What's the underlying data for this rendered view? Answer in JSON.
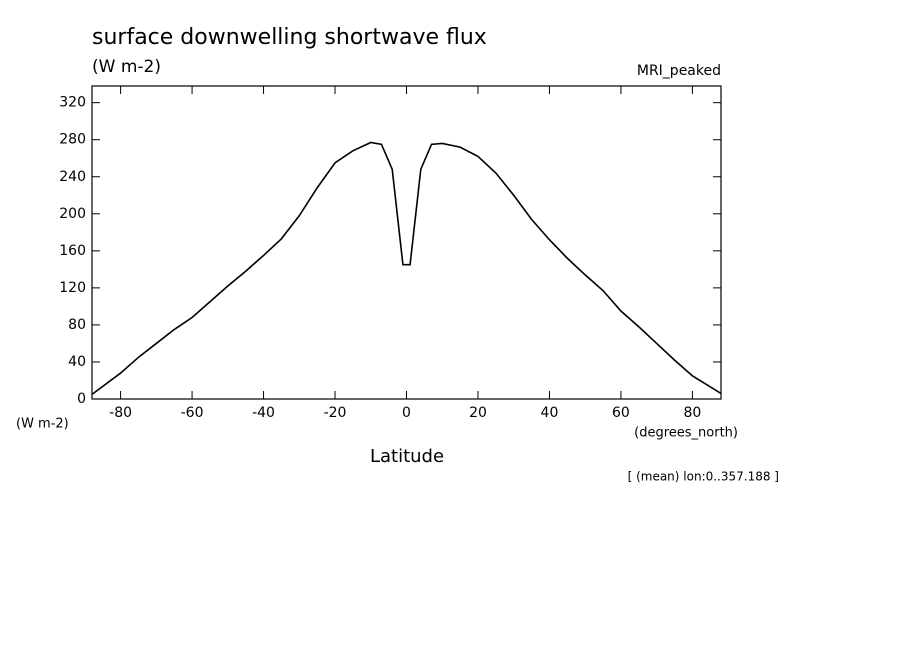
{
  "chart_data": {
    "type": "line",
    "title": "surface downwelling shortwave flux",
    "subtitle": "(W m-2)",
    "dataset_label": "MRI_peaked",
    "y_unit_label": "(W m-2)",
    "x_unit_label": "(degrees_north)",
    "x_label": "Latitude",
    "annotation": "[ (mean) lon:0..357.188 ]",
    "x": [
      -88,
      -80,
      -75,
      -70,
      -65,
      -60,
      -55,
      -50,
      -45,
      -40,
      -35,
      -30,
      -25,
      -20,
      -15,
      -10,
      -7,
      -4,
      -1,
      1,
      4,
      7,
      10,
      15,
      20,
      25,
      30,
      35,
      40,
      45,
      50,
      55,
      60,
      65,
      70,
      75,
      80,
      88
    ],
    "series": [
      {
        "color": "#000000",
        "values": [
          5,
          28,
          45,
          60,
          75,
          88,
          105,
          122,
          138,
          155,
          173,
          198,
          228,
          255,
          268,
          277,
          275,
          248,
          145,
          145,
          248,
          275,
          276,
          272,
          262,
          244,
          220,
          194,
          172,
          152,
          134,
          117,
          95,
          78,
          60,
          42,
          25,
          6
        ]
      }
    ],
    "xlim": [
      -88,
      88
    ],
    "ylim": [
      0,
      338
    ],
    "xticks": [
      -80,
      -60,
      -40,
      -20,
      0,
      20,
      40,
      60,
      80
    ],
    "yticks": [
      0,
      40,
      80,
      120,
      160,
      200,
      240,
      280,
      320
    ]
  }
}
